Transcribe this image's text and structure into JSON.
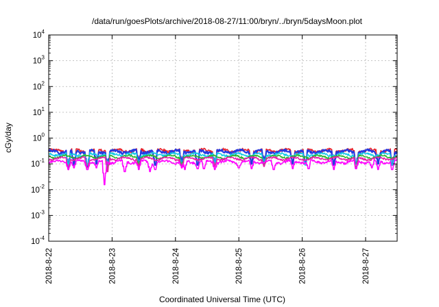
{
  "chart_data": {
    "type": "line",
    "title": "/data/run/goesPlots/archive/2018-08-27/11:00/bryn/../bryn/5daysMoon.plot",
    "xlabel": "Coordinated Universal Time (UTC)",
    "ylabel": "cGy/day",
    "y_scale": "log",
    "ylim": [
      0.0001,
      10000
    ],
    "xlim": [
      "2018-08-22T00:00",
      "2018-08-27T11:00"
    ],
    "grid": true,
    "x_ticks": [
      "2018-8-22",
      "2018-8-23",
      "2018-8-24",
      "2018-8-25",
      "2018-8-26",
      "2018-8-27"
    ],
    "y_ticks": [
      {
        "value": 0.0001,
        "base": "10",
        "exp": "-4"
      },
      {
        "value": 0.001,
        "base": "10",
        "exp": "-3"
      },
      {
        "value": 0.01,
        "base": "10",
        "exp": "-2"
      },
      {
        "value": 0.1,
        "base": "10",
        "exp": "-1"
      },
      {
        "value": 1,
        "base": "10",
        "exp": "0"
      },
      {
        "value": 10,
        "base": "10",
        "exp": "1"
      },
      {
        "value": 100,
        "base": "10",
        "exp": "2"
      },
      {
        "value": 1000,
        "base": "10",
        "exp": "3"
      },
      {
        "value": 10000,
        "base": "10",
        "exp": "4"
      }
    ],
    "series": [
      {
        "color": "#e8212a",
        "baseline": 0.33,
        "noise": 0.12,
        "dips": [
          [
            0.31,
            0.07
          ],
          [
            0.4,
            0.09
          ],
          [
            0.61,
            0.08
          ],
          [
            0.75,
            0.1
          ],
          [
            0.93,
            0.08
          ],
          [
            1.42,
            0.11
          ],
          [
            1.68,
            0.09
          ],
          [
            2.1,
            0.1
          ],
          [
            2.35,
            0.09
          ],
          [
            2.62,
            0.09
          ],
          [
            3.2,
            0.1
          ],
          [
            3.4,
            0.12
          ],
          [
            3.85,
            0.1
          ],
          [
            4.05,
            0.11
          ],
          [
            4.5,
            0.09
          ],
          [
            4.85,
            0.1
          ],
          [
            5.2,
            0.1
          ],
          [
            5.42,
            0.09
          ]
        ]
      },
      {
        "color": "#2639e0",
        "baseline": 0.3,
        "noise": 0.12,
        "dips": [
          [
            0.31,
            0.07
          ],
          [
            0.4,
            0.09
          ],
          [
            0.61,
            0.08
          ],
          [
            0.75,
            0.1
          ],
          [
            0.93,
            0.08
          ],
          [
            1.42,
            0.11
          ],
          [
            1.68,
            0.09
          ],
          [
            2.1,
            0.1
          ],
          [
            2.35,
            0.09
          ],
          [
            2.62,
            0.09
          ],
          [
            3.2,
            0.1
          ],
          [
            3.4,
            0.12
          ],
          [
            3.85,
            0.1
          ],
          [
            4.05,
            0.11
          ],
          [
            4.5,
            0.09
          ],
          [
            4.85,
            0.1
          ],
          [
            5.2,
            0.1
          ],
          [
            5.42,
            0.09
          ]
        ]
      },
      {
        "color": "#16c8e6",
        "baseline": 0.23,
        "noise": 0.1,
        "dips": [
          [
            0.31,
            0.08
          ],
          [
            0.61,
            0.09
          ],
          [
            0.93,
            0.07
          ],
          [
            1.42,
            0.1
          ],
          [
            2.1,
            0.09
          ],
          [
            2.62,
            0.1
          ],
          [
            3.4,
            0.1
          ],
          [
            4.05,
            0.09
          ],
          [
            4.85,
            0.1
          ],
          [
            5.42,
            0.09
          ]
        ]
      },
      {
        "color": "#2db52d",
        "baseline": 0.19,
        "noise": 0.08,
        "dips": [
          [
            0.93,
            0.06
          ],
          [
            1.42,
            0.09
          ],
          [
            2.1,
            0.08
          ],
          [
            3.4,
            0.09
          ],
          [
            4.85,
            0.08
          ]
        ]
      },
      {
        "color": "#e61ea8",
        "baseline": 0.16,
        "noise": 0.08,
        "dips": [
          [
            0.31,
            0.06
          ],
          [
            0.61,
            0.07
          ],
          [
            0.93,
            0.05
          ],
          [
            1.42,
            0.08
          ],
          [
            2.1,
            0.07
          ],
          [
            2.62,
            0.08
          ],
          [
            3.4,
            0.08
          ],
          [
            4.85,
            0.07
          ]
        ]
      },
      {
        "color": "#ff00ff",
        "baseline": 0.12,
        "noise": 0.1,
        "dips": [
          [
            0.31,
            0.06
          ],
          [
            0.4,
            0.07
          ],
          [
            0.61,
            0.06
          ],
          [
            0.75,
            0.07
          ],
          [
            0.88,
            0.0155
          ],
          [
            1.2,
            0.05
          ],
          [
            1.42,
            0.06
          ],
          [
            1.6,
            0.05
          ],
          [
            1.68,
            0.06
          ],
          [
            2.1,
            0.07
          ],
          [
            2.15,
            0.06
          ],
          [
            2.35,
            0.065
          ],
          [
            2.45,
            0.065
          ],
          [
            2.62,
            0.06
          ],
          [
            3.0,
            0.07
          ],
          [
            3.2,
            0.065
          ],
          [
            3.55,
            0.06
          ],
          [
            3.85,
            0.065
          ],
          [
            4.1,
            0.065
          ],
          [
            4.5,
            0.06
          ],
          [
            4.85,
            0.065
          ],
          [
            5.1,
            0.07
          ],
          [
            5.2,
            0.06
          ],
          [
            5.42,
            0.06
          ]
        ]
      }
    ]
  }
}
